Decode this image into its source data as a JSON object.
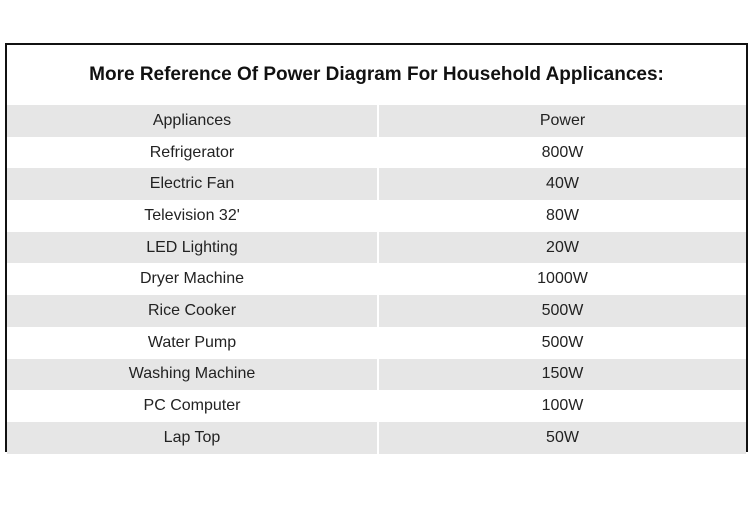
{
  "title": "More Reference Of Power Diagram For Household Applicances:",
  "header": {
    "appliance": "Appliances",
    "power": "Power"
  },
  "rows": [
    {
      "appliance": "Refrigerator",
      "power": "800W"
    },
    {
      "appliance": "Electric Fan",
      "power": "40W"
    },
    {
      "appliance": "Television 32'",
      "power": "80W"
    },
    {
      "appliance": "LED Lighting",
      "power": "20W"
    },
    {
      "appliance": "Dryer Machine",
      "power": "1000W"
    },
    {
      "appliance": "Rice Cooker",
      "power": "500W"
    },
    {
      "appliance": "Water Pump",
      "power": "500W"
    },
    {
      "appliance": "Washing Machine",
      "power": "150W"
    },
    {
      "appliance": "PC Computer",
      "power": "100W"
    },
    {
      "appliance": "Lap Top",
      "power": "50W"
    }
  ]
}
